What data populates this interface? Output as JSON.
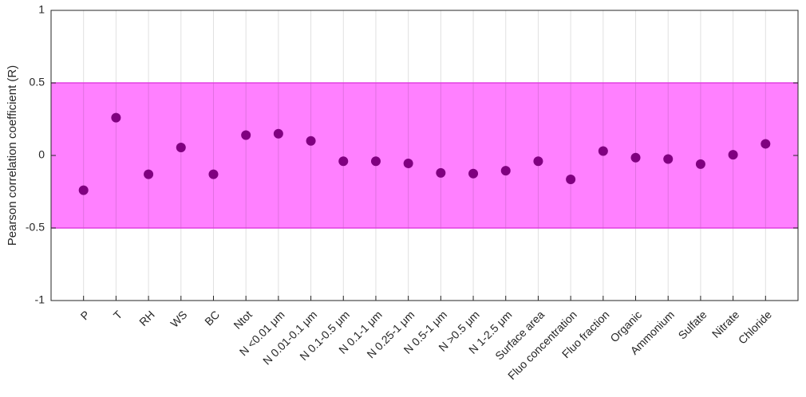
{
  "chart_data": {
    "type": "scatter",
    "y_label": "Pearson correlation coefficient (R)",
    "categories": [
      "P",
      "T",
      "RH",
      "WS",
      "BC",
      "Ntot",
      "N <0.01 μm",
      "N 0.01-0.1 μm",
      "N 0.1-0.5 μm",
      "N 0.1-1 μm",
      "N 0.25-1 μm",
      "N 0.5-1 μm",
      "N >0.5 μm",
      "N 1-2.5 μm",
      "Surface area",
      "Fluo concentration",
      "Fluo fraction",
      "Organic",
      "Ammonium",
      "Sulfate",
      "Nitrate",
      "Chloride"
    ],
    "values": [
      -0.24,
      0.26,
      -0.13,
      0.055,
      -0.13,
      0.14,
      0.15,
      0.1,
      -0.04,
      -0.04,
      -0.055,
      -0.12,
      -0.125,
      -0.105,
      -0.04,
      -0.165,
      0.03,
      -0.015,
      -0.025,
      -0.06,
      0.005,
      0.08
    ],
    "color": "#800080",
    "shaded_range": [
      -0.5,
      0.5
    ],
    "shaded_color": "#ff80ff",
    "ylim": [
      -1,
      1
    ],
    "yticks": [
      -1,
      -0.5,
      0,
      0.5,
      1
    ],
    "grid": true
  }
}
